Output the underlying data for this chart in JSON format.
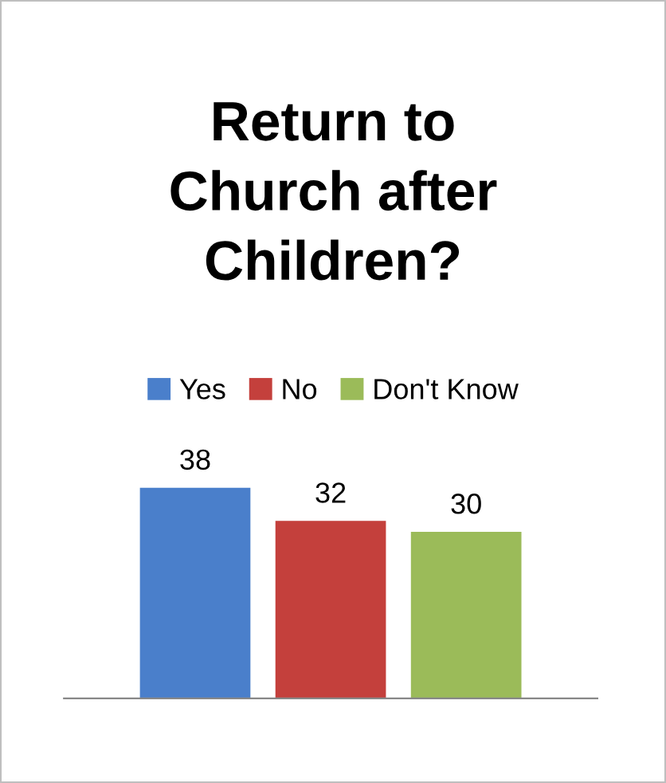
{
  "chart_data": {
    "type": "bar",
    "title": "Return to\nChurch after\nChildren?",
    "categories": [
      null
    ],
    "series": [
      {
        "name": "Yes",
        "color": "#4a7fcb",
        "values": [
          38
        ]
      },
      {
        "name": "No",
        "color": "#c4403c",
        "values": [
          32
        ]
      },
      {
        "name": "Don't Know",
        "color": "#9bbb59",
        "values": [
          30
        ]
      }
    ],
    "data_labels": true,
    "legend": "top",
    "grid": false
  }
}
